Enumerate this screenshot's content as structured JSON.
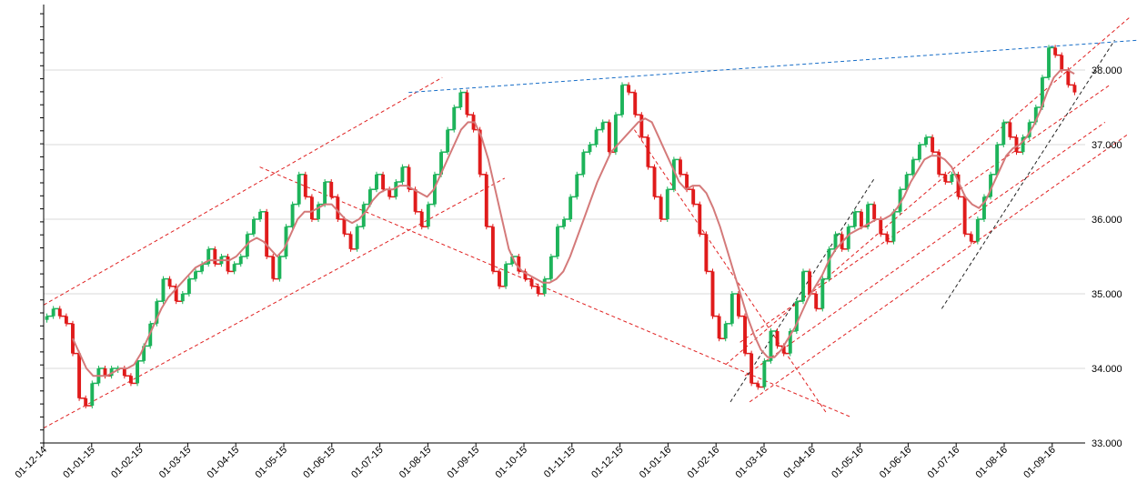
{
  "chart_data": {
    "type": "candlestick",
    "title": "",
    "xlabel": "",
    "ylabel": "",
    "ylim": [
      33.0,
      38.5
    ],
    "grid": true,
    "legend": "none",
    "x_tick_labels": [
      "01-12-14",
      "01-01-15",
      "01-02-15",
      "01-03-15",
      "01-04-15",
      "01-05-15",
      "01-06-15",
      "01-07-15",
      "01-08-15",
      "01-09-15",
      "01-10-15",
      "01-11-15",
      "01-12-15",
      "01-01-16",
      "01-02-16",
      "01-03-16",
      "01-04-16",
      "01-05-16",
      "01-06-16",
      "01-07-16",
      "01-08-16",
      "01-09-16"
    ],
    "y_tick_labels": [
      "33.000",
      "34.000",
      "35.000",
      "36.000",
      "37.000",
      "38.000"
    ],
    "y_tick_values": [
      33.0,
      34.0,
      35.0,
      36.0,
      37.0,
      38.0
    ],
    "x_range_months": [
      0,
      22.6
    ],
    "series": [
      {
        "name": "",
        "kind": "candles",
        "up_color": "#1db35a",
        "down_color": "#e01b1b",
        "close": [
          34.7,
          34.8,
          34.7,
          34.6,
          34.2,
          33.6,
          33.5,
          33.8,
          34.0,
          33.9,
          34.0,
          34.0,
          33.9,
          33.8,
          34.1,
          34.3,
          34.6,
          34.9,
          35.2,
          35.1,
          34.9,
          35.0,
          35.2,
          35.3,
          35.4,
          35.6,
          35.4,
          35.5,
          35.3,
          35.4,
          35.5,
          35.8,
          36.0,
          36.1,
          35.5,
          35.2,
          35.5,
          35.9,
          36.2,
          36.6,
          36.3,
          36.0,
          36.2,
          36.5,
          36.3,
          36.0,
          35.8,
          35.6,
          35.9,
          36.2,
          36.4,
          36.6,
          36.4,
          36.3,
          36.5,
          36.7,
          36.4,
          36.1,
          35.9,
          36.2,
          36.6,
          36.9,
          37.2,
          37.5,
          37.7,
          37.4,
          37.2,
          36.6,
          35.9,
          35.3,
          35.1,
          35.4,
          35.5,
          35.3,
          35.2,
          35.1,
          35.0,
          35.2,
          35.5,
          35.9,
          36.0,
          36.3,
          36.6,
          36.9,
          37.0,
          37.2,
          37.3,
          36.9,
          37.4,
          37.8,
          37.7,
          37.4,
          37.1,
          36.7,
          36.3,
          36.0,
          36.4,
          36.8,
          36.6,
          36.4,
          36.2,
          35.8,
          35.3,
          34.7,
          34.4,
          34.6,
          35.0,
          34.7,
          34.2,
          33.8,
          33.75,
          34.1,
          34.5,
          34.3,
          34.2,
          34.5,
          34.9,
          35.3,
          35.0,
          34.8,
          35.2,
          35.6,
          35.8,
          35.6,
          35.9,
          36.1,
          35.9,
          36.2,
          36.0,
          35.8,
          35.7,
          36.1,
          36.4,
          36.6,
          36.8,
          37.0,
          37.1,
          36.9,
          36.6,
          36.5,
          36.6,
          36.3,
          35.8,
          35.7,
          36.0,
          36.3,
          36.6,
          37.0,
          37.3,
          37.1,
          36.9,
          37.1,
          37.3,
          37.5,
          37.9,
          38.3,
          38.2,
          38.0,
          37.8,
          37.7
        ]
      },
      {
        "name": "",
        "kind": "moving_average",
        "color": "#d47a7a",
        "start_index": 4,
        "values": [
          34.4,
          34.2,
          34.0,
          33.9,
          33.9,
          33.9,
          33.95,
          34.0,
          34.0,
          34.05,
          34.2,
          34.4,
          34.6,
          34.8,
          34.95,
          35.05,
          35.15,
          35.25,
          35.35,
          35.4,
          35.45,
          35.45,
          35.45,
          35.45,
          35.5,
          35.6,
          35.7,
          35.75,
          35.7,
          35.6,
          35.5,
          35.6,
          35.8,
          36.0,
          36.1,
          36.1,
          36.15,
          36.2,
          36.2,
          36.1,
          36.0,
          35.95,
          36.0,
          36.1,
          36.25,
          36.35,
          36.4,
          36.4,
          36.45,
          36.45,
          36.4,
          36.35,
          36.3,
          36.4,
          36.6,
          36.8,
          37.0,
          37.2,
          37.3,
          37.3,
          37.1,
          36.8,
          36.4,
          36.0,
          35.6,
          35.4,
          35.3,
          35.25,
          35.2,
          35.15,
          35.15,
          35.2,
          35.3,
          35.5,
          35.75,
          36.0,
          36.25,
          36.5,
          36.7,
          36.9,
          37.0,
          37.1,
          37.2,
          37.3,
          37.35,
          37.3,
          37.1,
          36.9,
          36.7,
          36.5,
          36.4,
          36.45,
          36.45,
          36.35,
          36.15,
          35.9,
          35.6,
          35.3,
          35.0,
          34.7,
          34.45,
          34.25,
          34.15,
          34.15,
          34.25,
          34.4,
          34.55,
          34.75,
          34.95,
          35.1,
          35.25,
          35.45,
          35.6,
          35.7,
          35.8,
          35.85,
          35.9,
          35.95,
          36.0,
          36.0,
          36.05,
          36.15,
          36.3,
          36.5,
          36.65,
          36.8,
          36.85,
          36.85,
          36.8,
          36.7,
          36.5,
          36.3,
          36.2,
          36.15,
          36.25,
          36.45,
          36.65,
          36.85,
          36.95,
          37.0,
          37.1,
          37.25,
          37.45,
          37.7,
          37.9,
          38.0,
          38.0,
          37.95
        ]
      }
    ],
    "trendlines": [
      {
        "color": "#e02020",
        "style": "dashed",
        "from": [
          0.0,
          34.85
        ],
        "to": [
          8.3,
          37.9
        ]
      },
      {
        "color": "#e02020",
        "style": "dashed",
        "from": [
          0.0,
          33.2
        ],
        "to": [
          9.6,
          36.55
        ]
      },
      {
        "color": "#e02020",
        "style": "dashed",
        "from": [
          4.5,
          36.7
        ],
        "to": [
          16.8,
          33.35
        ]
      },
      {
        "color": "#e02020",
        "style": "dashed",
        "from": [
          12.3,
          37.2
        ],
        "to": [
          16.3,
          33.4
        ]
      },
      {
        "color": "#e02020",
        "style": "dashed",
        "from": [
          14.5,
          34.35
        ],
        "to": [
          22.2,
          37.8
        ]
      },
      {
        "color": "#e02020",
        "style": "dashed",
        "from": [
          14.2,
          34.05
        ],
        "to": [
          22.6,
          38.7
        ]
      },
      {
        "color": "#e02020",
        "style": "dashed",
        "from": [
          14.7,
          33.55
        ],
        "to": [
          22.6,
          37.15
        ]
      },
      {
        "color": "#e02020",
        "style": "dashed",
        "from": [
          14.6,
          33.9
        ],
        "to": [
          22.1,
          37.3
        ]
      },
      {
        "color": "#1a6fc8",
        "style": "dashed",
        "from": [
          7.6,
          37.7
        ],
        "to": [
          22.8,
          38.4
        ]
      },
      {
        "color": "#222222",
        "style": "dashed",
        "from": [
          14.3,
          33.55
        ],
        "to": [
          17.3,
          36.55
        ]
      },
      {
        "color": "#222222",
        "style": "dashed",
        "from": [
          18.7,
          34.8
        ],
        "to": [
          22.3,
          38.4
        ]
      }
    ]
  }
}
